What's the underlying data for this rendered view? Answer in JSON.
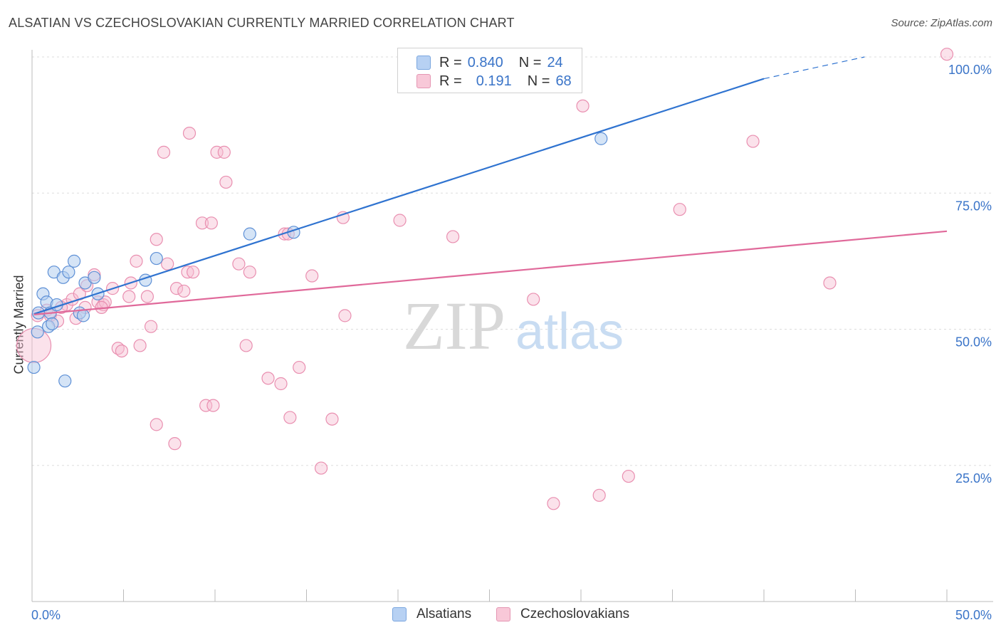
{
  "header": {
    "title": "ALSATIAN VS CZECHOSLOVAKIAN CURRENTLY MARRIED CORRELATION CHART",
    "source": "Source: ZipAtlas.com"
  },
  "colors": {
    "blue": "#4a86d8",
    "blue_fill": "#a9c9f0",
    "pink": "#e07aa0",
    "pink_fill": "#f5b6cb",
    "axis_label": "#3a74c8",
    "grid": "#dddddd"
  },
  "legend_top": {
    "rows": [
      {
        "r_label": "R =",
        "r_value": "0.840",
        "n_label": "N =",
        "n_value": "24"
      },
      {
        "r_label": "R =",
        "r_value": "0.191",
        "n_label": "N =",
        "n_value": "68"
      }
    ]
  },
  "legend_bottom": {
    "items": [
      "Alsatians",
      "Czechoslovakians"
    ]
  },
  "watermark": {
    "zip": "ZIP",
    "atlas": "atlas"
  },
  "chart_data": {
    "type": "scatter",
    "title": "ALSATIAN VS CZECHOSLOVAKIAN CURRENTLY MARRIED CORRELATION CHART",
    "xlabel": "",
    "ylabel": "Currently Married",
    "xlim": [
      0,
      50
    ],
    "ylim": [
      0,
      105
    ],
    "x_tick_labels": [
      "0.0%",
      "50.0%"
    ],
    "y_ticks": [
      25,
      50,
      75,
      100
    ],
    "y_tick_labels": [
      "25.0%",
      "50.0%",
      "75.0%",
      "100.0%"
    ],
    "grid": true,
    "series": [
      {
        "name": "Alsatians",
        "r": 0.84,
        "n": 24,
        "trend": {
          "x0": 0.1,
          "y0": 52.8,
          "x1": 40.0,
          "y1": 96.0,
          "dash_x1": 45.5,
          "dash_y1": 100.0
        },
        "points": [
          [
            0.1,
            43.0
          ],
          [
            0.3,
            49.5
          ],
          [
            0.35,
            53.0
          ],
          [
            0.6,
            56.5
          ],
          [
            0.8,
            55.0
          ],
          [
            0.9,
            50.5
          ],
          [
            1.0,
            53.0
          ],
          [
            1.1,
            51.0
          ],
          [
            1.2,
            60.5
          ],
          [
            1.35,
            54.5
          ],
          [
            1.7,
            59.5
          ],
          [
            1.8,
            40.5
          ],
          [
            2.0,
            60.5
          ],
          [
            2.3,
            62.5
          ],
          [
            2.6,
            53.0
          ],
          [
            2.8,
            52.5
          ],
          [
            2.9,
            58.5
          ],
          [
            3.4,
            59.5
          ],
          [
            3.6,
            56.5
          ],
          [
            6.2,
            59.0
          ],
          [
            6.8,
            63.0
          ],
          [
            11.9,
            67.5
          ],
          [
            14.3,
            67.8
          ],
          [
            31.1,
            85.0
          ]
        ]
      },
      {
        "name": "Czechoslovakians",
        "r": 0.191,
        "n": 68,
        "trend": {
          "x0": 0.1,
          "y0": 52.7,
          "x1": 50.0,
          "y1": 68.0
        },
        "points": [
          [
            0.1,
            47.0
          ],
          [
            0.3,
            52.5
          ],
          [
            0.8,
            53.5
          ],
          [
            1.0,
            52.5
          ],
          [
            1.4,
            51.5
          ],
          [
            1.9,
            54.5
          ],
          [
            2.2,
            55.5
          ],
          [
            2.4,
            52.0
          ],
          [
            2.6,
            56.5
          ],
          [
            2.9,
            54.0
          ],
          [
            3.0,
            58.0
          ],
          [
            3.4,
            60.0
          ],
          [
            3.6,
            55.0
          ],
          [
            3.9,
            54.5
          ],
          [
            4.0,
            55.0
          ],
          [
            4.4,
            57.5
          ],
          [
            4.7,
            46.5
          ],
          [
            4.9,
            46.0
          ],
          [
            5.3,
            56.0
          ],
          [
            5.4,
            58.5
          ],
          [
            5.7,
            62.5
          ],
          [
            5.9,
            47.0
          ],
          [
            6.3,
            56.0
          ],
          [
            6.5,
            50.5
          ],
          [
            6.8,
            66.5
          ],
          [
            6.8,
            32.5
          ],
          [
            7.2,
            82.5
          ],
          [
            7.4,
            62.0
          ],
          [
            7.8,
            29.0
          ],
          [
            7.9,
            57.5
          ],
          [
            8.3,
            57.0
          ],
          [
            8.5,
            60.5
          ],
          [
            8.6,
            86.0
          ],
          [
            8.8,
            60.5
          ],
          [
            9.3,
            69.5
          ],
          [
            9.5,
            36.0
          ],
          [
            9.8,
            69.5
          ],
          [
            9.9,
            36.0
          ],
          [
            10.1,
            82.5
          ],
          [
            10.5,
            82.5
          ],
          [
            10.6,
            77.0
          ],
          [
            11.3,
            62.0
          ],
          [
            11.7,
            47.0
          ],
          [
            11.9,
            60.5
          ],
          [
            12.9,
            41.0
          ],
          [
            13.6,
            40.0
          ],
          [
            13.8,
            67.5
          ],
          [
            14.0,
            67.5
          ],
          [
            14.1,
            33.8
          ],
          [
            14.6,
            43.0
          ],
          [
            15.3,
            59.8
          ],
          [
            15.8,
            24.5
          ],
          [
            16.4,
            33.5
          ],
          [
            17.0,
            70.5
          ],
          [
            17.1,
            52.5
          ],
          [
            20.1,
            70.0
          ],
          [
            23.0,
            67.0
          ],
          [
            27.4,
            55.5
          ],
          [
            28.5,
            18.0
          ],
          [
            30.1,
            91.0
          ],
          [
            31.0,
            19.5
          ],
          [
            32.6,
            23.0
          ],
          [
            35.4,
            72.0
          ],
          [
            39.4,
            84.5
          ],
          [
            43.6,
            58.5
          ],
          [
            50.0,
            100.5
          ],
          [
            3.8,
            54.0
          ],
          [
            1.6,
            54.0
          ]
        ]
      }
    ]
  }
}
